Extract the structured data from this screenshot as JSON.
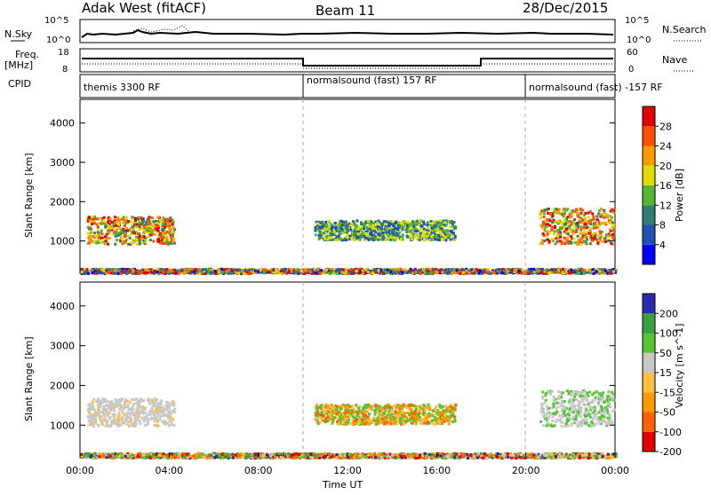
{
  "header": {
    "station": "Adak West (fitACF)",
    "beam": "Beam 11",
    "date": "28/Dec/2015"
  },
  "top_panels": {
    "nsky_label": "N.Sky",
    "nsky_ticks": [
      "10^5",
      "10^0"
    ],
    "nsearch_label": "N.Search",
    "nsearch_ticks": [
      "10^5",
      "10^0"
    ],
    "freq_label": "Freq.",
    "freq_unit": "[MHz]",
    "freq_ticks": [
      "18",
      "8"
    ],
    "nave_label": "Nave",
    "nave_ticks": [
      "60",
      "0"
    ],
    "cpid_label": "CPID",
    "cpid_segments": [
      "themis 3300 RF",
      "normalsound (fast) 157 RF",
      "normalsound (fast) -157 RF"
    ]
  },
  "chart_data": [
    {
      "type": "heatmap",
      "ylabel": "Slant Range [km]",
      "xlabel": "",
      "y_ticks": [
        "4000",
        "3000",
        "2000",
        "1000"
      ],
      "ylim": [
        180,
        4600
      ],
      "colorbar_label": "Power [dB]",
      "colorbar_ticks": [
        "28",
        "24",
        "20",
        "16",
        "12",
        "8",
        "4"
      ],
      "colorbar_colors": [
        "#0000ff",
        "#2050b0",
        "#2f7f6f",
        "#55b535",
        "#dddd00",
        "#ff9a00",
        "#ff5000",
        "#e00000"
      ],
      "bands": [
        {
          "t_start": 0.3,
          "t_end": 4.2,
          "r_center": 1300,
          "r_width": 700,
          "level": "strong"
        },
        {
          "t_start": 10.5,
          "t_end": 16.8,
          "r_center": 1300,
          "r_width": 500,
          "level": "medium"
        },
        {
          "t_start": 20.6,
          "t_end": 23.9,
          "r_center": 1400,
          "r_width": 900,
          "level": "strong"
        },
        {
          "t_start": 0.0,
          "t_end": 24.0,
          "r_center": 260,
          "r_width": 120,
          "level": "weak"
        }
      ]
    },
    {
      "type": "heatmap",
      "ylabel": "Slant Range [km]",
      "xlabel": "Time UT",
      "y_ticks": [
        "4000",
        "3000",
        "2000",
        "1000"
      ],
      "ylim": [
        180,
        4600
      ],
      "x_ticks": [
        "00:00",
        "04:00",
        "08:00",
        "12:00",
        "16:00",
        "20:00",
        "00:00"
      ],
      "colorbar_label": "Velocity [m s^-1]",
      "colorbar_ticks": [
        "200",
        "100",
        "50",
        "15",
        "-15",
        "-50",
        "-100",
        "-200"
      ],
      "colorbar_colors": [
        "#e00000",
        "#ff6000",
        "#ff9a00",
        "#ffc040",
        "#c8c8c8",
        "#55c535",
        "#3aa040",
        "#2a2ab0"
      ],
      "bands": [
        {
          "t_start": 0.3,
          "t_end": 4.2,
          "r_center": 1350,
          "r_width": 700,
          "level": "ground"
        },
        {
          "t_start": 10.5,
          "t_end": 16.8,
          "r_center": 1300,
          "r_width": 500,
          "level": "orange-green"
        },
        {
          "t_start": 20.6,
          "t_end": 23.9,
          "r_center": 1450,
          "r_width": 900,
          "level": "ground-green"
        },
        {
          "t_start": 0.0,
          "t_end": 24.0,
          "r_center": 260,
          "r_width": 120,
          "level": "mixed"
        }
      ]
    }
  ]
}
